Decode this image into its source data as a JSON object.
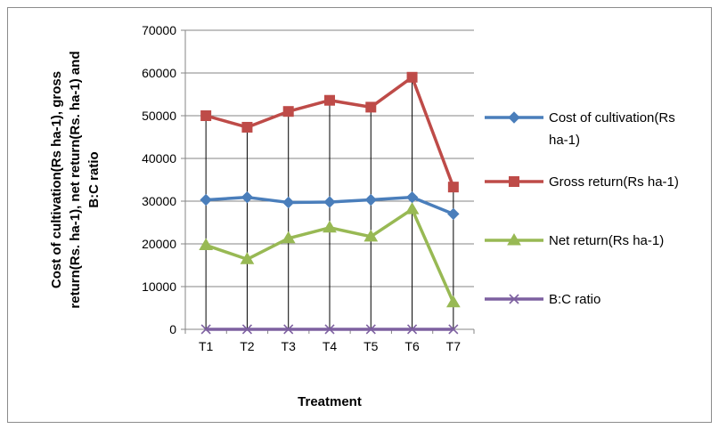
{
  "chart_data": {
    "type": "line",
    "title": "",
    "xlabel": "Treatment",
    "ylabel_lines": [
      "Cost of cultivation(Rs ha-1), gross",
      "return(Rs. ha-1), net return(Rs. ha-1) and",
      "B:C ratio"
    ],
    "ylim": [
      0,
      70000
    ],
    "yticks": [
      "0",
      "10000",
      "20000",
      "30000",
      "40000",
      "50000",
      "60000",
      "70000"
    ],
    "categories": [
      "T1",
      "T2",
      "T3",
      "T4",
      "T5",
      "T6",
      "T7"
    ],
    "grid": "horizontal",
    "drop_lines": true,
    "legend_position": "right",
    "series": [
      {
        "name": "Cost of cultivation(Rs ha-1)",
        "legend_lines": [
          "Cost of cultivation(Rs",
          "ha-1)"
        ],
        "color": "#4a7ebb",
        "marker": "diamond",
        "values": [
          30300,
          30900,
          29700,
          29800,
          30300,
          30900,
          27000
        ]
      },
      {
        "name": "Gross return(Rs ha-1)",
        "legend_lines": [
          "Gross return(Rs ha-1)"
        ],
        "color": "#be4b48",
        "marker": "square",
        "values": [
          50000,
          47300,
          51000,
          53600,
          52000,
          59000,
          33300
        ]
      },
      {
        "name": "Net return(Rs ha-1)",
        "legend_lines": [
          "Net return(Rs ha-1)"
        ],
        "color": "#98b954",
        "marker": "triangle",
        "values": [
          19700,
          16400,
          21300,
          23800,
          21700,
          28100,
          6300
        ]
      },
      {
        "name": "B:C ratio",
        "legend_lines": [
          "B:C ratio"
        ],
        "color": "#7d60a0",
        "marker": "x",
        "values": [
          1.65,
          1.53,
          1.72,
          1.8,
          1.72,
          1.91,
          1.23
        ]
      }
    ]
  }
}
